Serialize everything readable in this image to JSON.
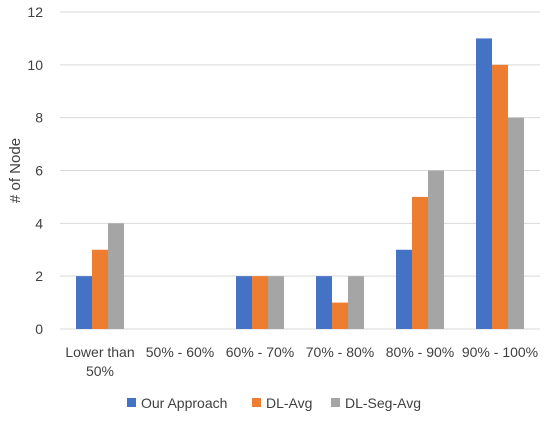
{
  "chart_data": {
    "type": "bar",
    "title": "",
    "xlabel": "",
    "ylabel": "# of Node",
    "ylim": [
      0,
      12
    ],
    "yticks": [
      0,
      2,
      4,
      6,
      8,
      10,
      12
    ],
    "grid": true,
    "legend_position": "bottom",
    "categories": [
      [
        "Lower than",
        "50%"
      ],
      [
        "50% - 60%"
      ],
      [
        "60% - 70%"
      ],
      [
        "70% - 80%"
      ],
      [
        "80% - 90%"
      ],
      [
        "90% - 100%"
      ]
    ],
    "series": [
      {
        "name": "Our Approach",
        "color": "#4472C4",
        "values": [
          2,
          0,
          2,
          2,
          3,
          11
        ]
      },
      {
        "name": "DL-Avg",
        "color": "#ED7D31",
        "values": [
          3,
          0,
          2,
          1,
          5,
          10
        ]
      },
      {
        "name": "DL-Seg-Avg",
        "color": "#A5A5A5",
        "values": [
          4,
          0,
          2,
          2,
          6,
          8
        ]
      }
    ]
  }
}
